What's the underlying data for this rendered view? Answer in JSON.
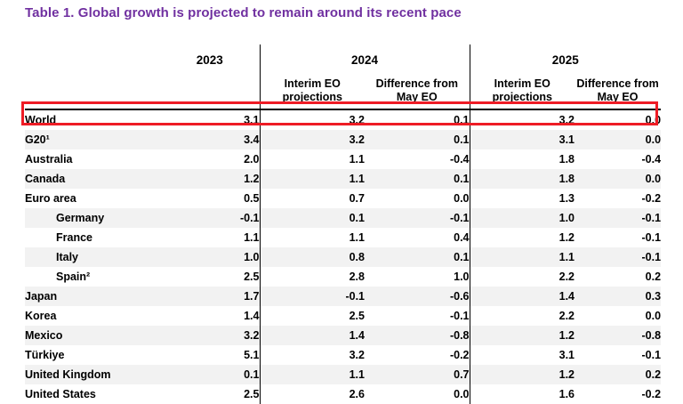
{
  "title": "Table 1. Global growth is projected to remain around its recent pace",
  "colors": {
    "title_purple": "#7030A0",
    "highlight_red": "#EE1C25",
    "row_shade": "#F2F2F2",
    "text": "#000000",
    "divider": "#000000"
  },
  "annotation": {
    "highlighted_row": "World"
  },
  "table": {
    "year_headers": {
      "y2023": "2023",
      "y2024": "2024",
      "y2025": "2025"
    },
    "subheaders": {
      "interim_2024": "Interim EO\nprojections",
      "difference_2024": "Difference from\nMay EO",
      "interim_2025": "Interim EO\nprojections",
      "difference_2025": "Difference from\nMay EO"
    },
    "rows": [
      {
        "label": "World",
        "indent": false,
        "highlight": true,
        "values": [
          "3.1",
          "3.2",
          "0.1",
          "3.2",
          "0.0"
        ]
      },
      {
        "label": "G20¹",
        "indent": false,
        "highlight": false,
        "values": [
          "3.4",
          "3.2",
          "0.1",
          "3.1",
          "0.0"
        ]
      },
      {
        "label": "Australia",
        "indent": false,
        "highlight": false,
        "values": [
          "2.0",
          "1.1",
          "-0.4",
          "1.8",
          "-0.4"
        ]
      },
      {
        "label": "Canada",
        "indent": false,
        "highlight": false,
        "values": [
          "1.2",
          "1.1",
          "0.1",
          "1.8",
          "0.0"
        ]
      },
      {
        "label": "Euro area",
        "indent": false,
        "highlight": false,
        "values": [
          "0.5",
          "0.7",
          "0.0",
          "1.3",
          "-0.2"
        ]
      },
      {
        "label": "Germany",
        "indent": true,
        "highlight": false,
        "values": [
          "-0.1",
          "0.1",
          "-0.1",
          "1.0",
          "-0.1"
        ]
      },
      {
        "label": "France",
        "indent": true,
        "highlight": false,
        "values": [
          "1.1",
          "1.1",
          "0.4",
          "1.2",
          "-0.1"
        ]
      },
      {
        "label": "Italy",
        "indent": true,
        "highlight": false,
        "values": [
          "1.0",
          "0.8",
          "0.1",
          "1.1",
          "-0.1"
        ]
      },
      {
        "label": "Spain²",
        "indent": true,
        "highlight": false,
        "values": [
          "2.5",
          "2.8",
          "1.0",
          "2.2",
          "0.2"
        ]
      },
      {
        "label": "Japan",
        "indent": false,
        "highlight": false,
        "values": [
          "1.7",
          "-0.1",
          "-0.6",
          "1.4",
          "0.3"
        ]
      },
      {
        "label": "Korea",
        "indent": false,
        "highlight": false,
        "values": [
          "1.4",
          "2.5",
          "-0.1",
          "2.2",
          "0.0"
        ]
      },
      {
        "label": "Mexico",
        "indent": false,
        "highlight": false,
        "values": [
          "3.2",
          "1.4",
          "-0.8",
          "1.2",
          "-0.8"
        ]
      },
      {
        "label": "Türkiye",
        "indent": false,
        "highlight": false,
        "values": [
          "5.1",
          "3.2",
          "-0.2",
          "3.1",
          "-0.1"
        ]
      },
      {
        "label": "United Kingdom",
        "indent": false,
        "highlight": false,
        "values": [
          "0.1",
          "1.1",
          "0.7",
          "1.2",
          "0.2"
        ]
      },
      {
        "label": "United States",
        "indent": false,
        "highlight": false,
        "values": [
          "2.5",
          "2.6",
          "0.0",
          "1.6",
          "-0.2"
        ]
      }
    ]
  }
}
